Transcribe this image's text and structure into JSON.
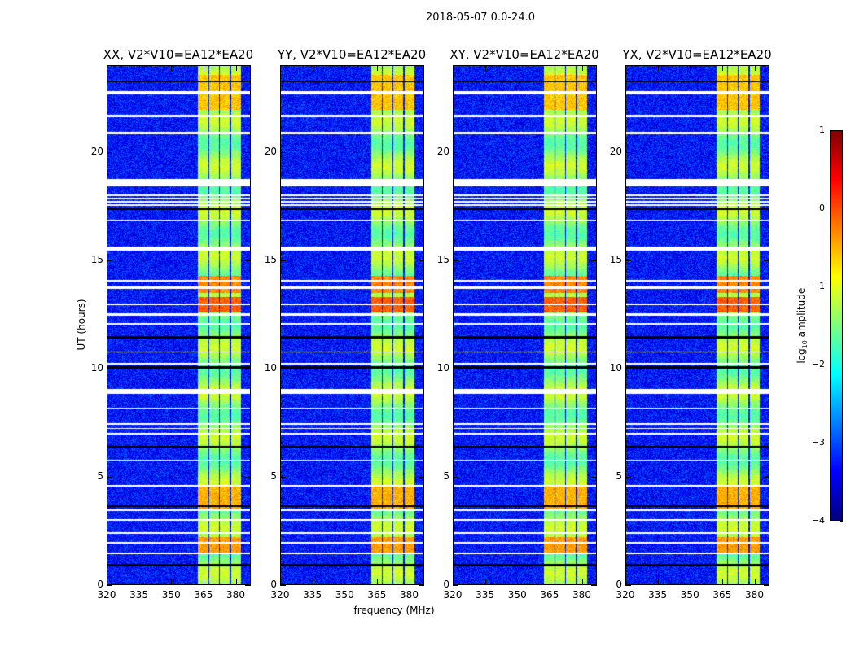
{
  "chart_data": {
    "type": "heatmap",
    "title": "2018-05-07 0.0-24.0",
    "xlabel": "frequency (MHz)",
    "ylabel": "UT (hours)",
    "xlim": [
      320,
      387
    ],
    "ylim": [
      0,
      24
    ],
    "xticks": [
      320,
      335,
      350,
      365,
      380
    ],
    "yticks": [
      0,
      5,
      10,
      15,
      20
    ],
    "panels": [
      {
        "title": "XX, V2*V10=EA12*EA20",
        "seed": 1
      },
      {
        "title": "YY, V2*V10=EA12*EA20",
        "seed": 2
      },
      {
        "title": "XY, V2*V10=EA12*EA20",
        "seed": 3
      },
      {
        "title": "YX, V2*V10=EA12*EA20",
        "seed": 4
      }
    ],
    "background_log10_amplitude": -3.3,
    "bright_subbands_mhz": [
      [
        362.3,
        367.2
      ],
      [
        367.5,
        372.1
      ],
      [
        372.8,
        377.3
      ],
      [
        378.0,
        382.6
      ]
    ],
    "band_log10_amplitude": -1.4,
    "hot_times_hours": [
      [
        22.0,
        23.6,
        -0.6
      ],
      [
        13.5,
        14.3,
        -0.3
      ],
      [
        12.6,
        13.3,
        -0.1
      ],
      [
        3.5,
        4.6,
        -0.5
      ],
      [
        1.5,
        2.2,
        -0.4
      ]
    ],
    "flagged_white_hours": [
      [
        22.7,
        22.85
      ],
      [
        21.65,
        21.75
      ],
      [
        20.85,
        20.95
      ],
      [
        18.45,
        18.8
      ],
      [
        18.0,
        18.05
      ],
      [
        17.85,
        17.9
      ],
      [
        17.7,
        17.75
      ],
      [
        17.55,
        17.6
      ],
      [
        16.85,
        16.9
      ],
      [
        15.45,
        15.65
      ],
      [
        14.05,
        14.1
      ],
      [
        13.7,
        13.8
      ],
      [
        12.95,
        13.0
      ],
      [
        12.45,
        12.55
      ],
      [
        12.05,
        12.1
      ],
      [
        10.75,
        10.8
      ],
      [
        10.2,
        10.28
      ],
      [
        8.85,
        9.05
      ],
      [
        8.15,
        8.2
      ],
      [
        7.4,
        7.48
      ],
      [
        7.2,
        7.27
      ],
      [
        6.95,
        7.02
      ],
      [
        5.73,
        5.8
      ],
      [
        4.53,
        4.6
      ],
      [
        3.42,
        3.48
      ],
      [
        2.95,
        3.05
      ],
      [
        2.37,
        2.43
      ],
      [
        1.92,
        1.98
      ],
      [
        1.43,
        1.49
      ]
    ],
    "flagged_black_hours": [
      [
        23.25,
        23.32
      ],
      [
        17.35,
        17.42
      ],
      [
        11.4,
        11.5
      ],
      [
        10.0,
        10.1
      ],
      [
        6.35,
        6.42
      ],
      [
        3.6,
        3.66
      ],
      [
        0.85,
        0.95
      ]
    ],
    "colorbar": {
      "label": "log10 amplitude",
      "label_main": "log",
      "label_sub": "10",
      "label_rest": " amplitude",
      "range": [
        -4,
        1
      ],
      "ticks": [
        1,
        0,
        -1,
        -2,
        -3,
        -4
      ],
      "colormap": "jet"
    }
  }
}
